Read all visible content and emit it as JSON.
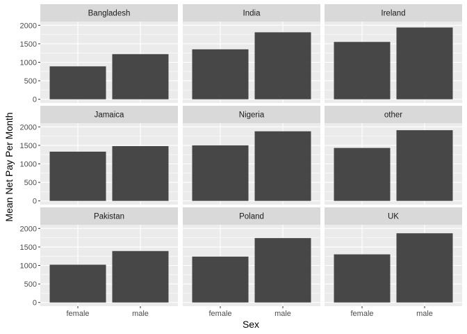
{
  "chart_data": {
    "type": "bar",
    "layout": "facet-wrap 3x3",
    "xlabel": "Sex",
    "ylabel": "Mean Net Pay Per Month",
    "categories": [
      "female",
      "male"
    ],
    "ylim": [
      0,
      2000
    ],
    "yticks": [
      0,
      500,
      1000,
      1500,
      2000
    ],
    "grid": true,
    "colors": {
      "bar": "#474747",
      "panel_bg": "#ebebeb",
      "strip_bg": "#d9d9d9",
      "grid_major": "#ffffff"
    },
    "facets": [
      {
        "name": "Bangladesh",
        "values": [
          890,
          1220
        ]
      },
      {
        "name": "India",
        "values": [
          1350,
          1810
        ]
      },
      {
        "name": "Ireland",
        "values": [
          1550,
          1940
        ]
      },
      {
        "name": "Jamaica",
        "values": [
          1330,
          1480
        ]
      },
      {
        "name": "Nigeria",
        "values": [
          1500,
          1880
        ]
      },
      {
        "name": "other",
        "values": [
          1430,
          1910
        ]
      },
      {
        "name": "Pakistan",
        "values": [
          1020,
          1390
        ]
      },
      {
        "name": "Poland",
        "values": [
          1240,
          1740
        ]
      },
      {
        "name": "UK",
        "values": [
          1300,
          1870
        ]
      }
    ]
  }
}
